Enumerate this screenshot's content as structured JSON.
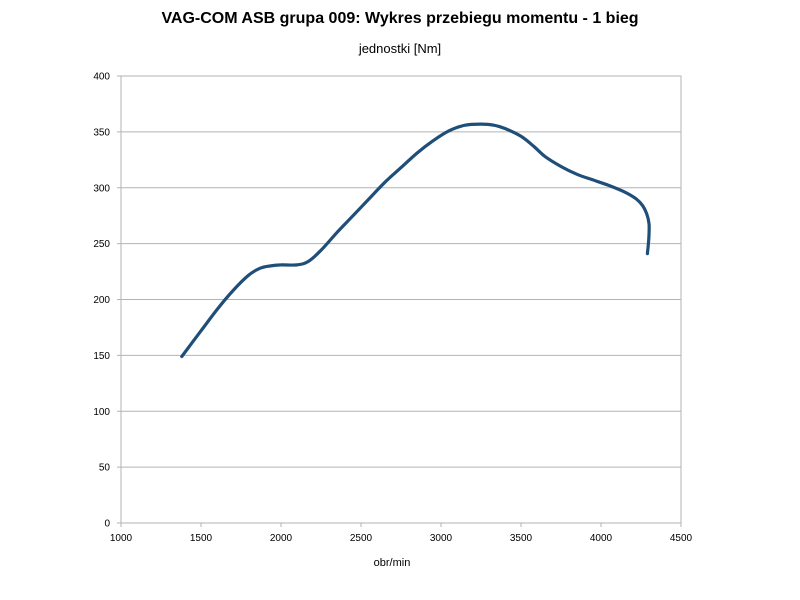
{
  "chart_data": {
    "type": "line",
    "title": "VAG-COM  ASB grupa 009: Wykres przebiegu momentu - 1 bieg",
    "subtitle": "jednostki [Nm]",
    "xlabel": "obr/min",
    "ylabel": "",
    "xlim": [
      1000,
      4500
    ],
    "ylim": [
      0,
      400
    ],
    "x_ticks": [
      1000,
      1500,
      2000,
      2500,
      3000,
      3500,
      4000,
      4500
    ],
    "y_ticks": [
      0,
      50,
      100,
      150,
      200,
      250,
      300,
      350,
      400
    ],
    "grid": "horizontal",
    "legend": "none",
    "line_color": "#1f4e79",
    "series": [
      {
        "x": [
          1380,
          1500,
          1600,
          1700,
          1800,
          1870,
          1930,
          2000,
          2100,
          2170,
          2250,
          2350,
          2450,
          2550,
          2650,
          2750,
          2850,
          2950,
          3050,
          3150,
          3250,
          3330,
          3400,
          3500,
          3580,
          3650,
          3750,
          3850,
          3950,
          4050,
          4150,
          4220,
          4260,
          4285,
          4300,
          4300,
          4295,
          4290
        ],
        "y": [
          149,
          172,
          191,
          208,
          222,
          228,
          230,
          231,
          231,
          234,
          244,
          260,
          275,
          290,
          305,
          318,
          331,
          342,
          351,
          356,
          357,
          356,
          353,
          346,
          337,
          328,
          319,
          312,
          307,
          302,
          296,
          290,
          284,
          277,
          268,
          258,
          248,
          241
        ]
      }
    ]
  }
}
